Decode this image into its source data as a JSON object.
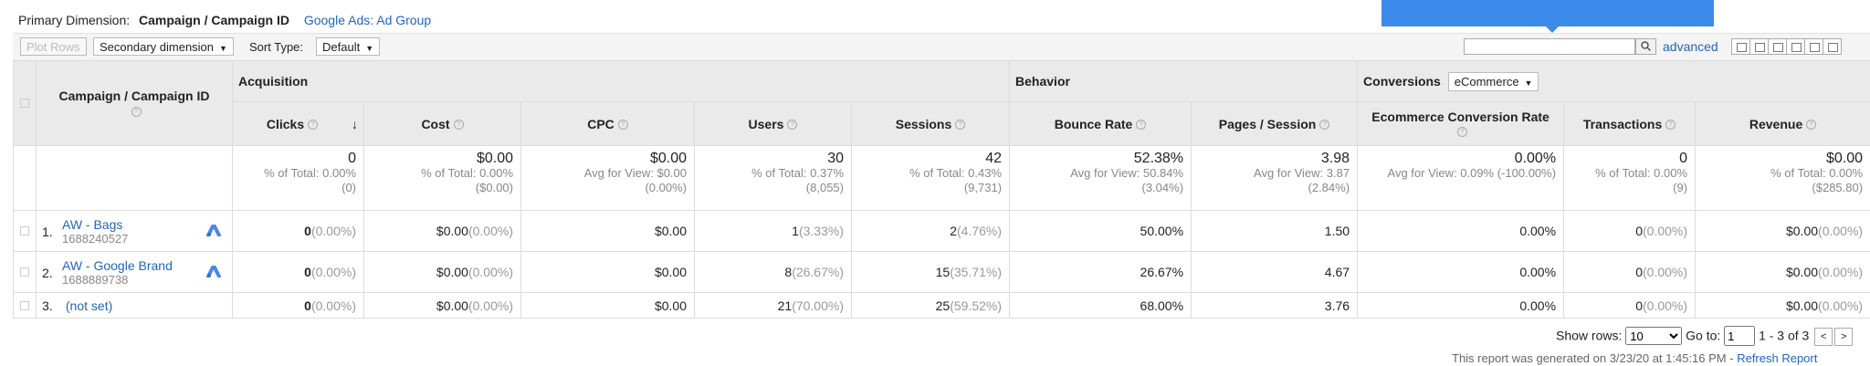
{
  "header": {
    "primary_label": "Primary Dimension:",
    "primary_value": "Campaign / Campaign ID",
    "alt_dimension": "Google Ads: Ad Group"
  },
  "toolbar": {
    "plot_rows": "Plot Rows",
    "secondary_dimension": "Secondary dimension",
    "sort_type_label": "Sort Type:",
    "sort_type_value": "Default",
    "search_placeholder": "",
    "advanced": "advanced"
  },
  "table": {
    "campaign_header": "Campaign / Campaign ID",
    "groups": {
      "acquisition": "Acquisition",
      "behavior": "Behavior",
      "conversions": "Conversions",
      "conversions_select": "eCommerce"
    },
    "columns": [
      "Clicks",
      "Cost",
      "CPC",
      "Users",
      "Sessions",
      "Bounce Rate",
      "Pages / Session",
      "Ecommerce Conversion Rate",
      "Transactions",
      "Revenue"
    ],
    "totals": [
      {
        "value": "0",
        "line2": "% of Total: 0.00%",
        "line3": "(0)"
      },
      {
        "value": "$0.00",
        "line2": "% of Total: 0.00%",
        "line3": "($0.00)"
      },
      {
        "value": "$0.00",
        "line2": "Avg for View: $0.00",
        "line3": "(0.00%)"
      },
      {
        "value": "30",
        "line2": "% of Total: 0.37%",
        "line3": "(8,055)"
      },
      {
        "value": "42",
        "line2": "% of Total: 0.43%",
        "line3": "(9,731)"
      },
      {
        "value": "52.38%",
        "line2": "Avg for View: 50.84%",
        "line3": "(3.04%)"
      },
      {
        "value": "3.98",
        "line2": "Avg for View: 3.87",
        "line3": "(2.84%)"
      },
      {
        "value": "0.00%",
        "line2": "Avg for View: 0.09% (-100.00%)",
        "line3": ""
      },
      {
        "value": "0",
        "line2": "% of Total: 0.00%",
        "line3": "(9)"
      },
      {
        "value": "$0.00",
        "line2": "% of Total: 0.00%",
        "line3": "($285.80)"
      }
    ],
    "rows": [
      {
        "index": "1.",
        "name": "AW - Bags",
        "id": "1688240527",
        "clicks": "0",
        "clicks_pct": "(0.00%)",
        "cost": "$0.00",
        "cost_pct": "(0.00%)",
        "cpc": "$0.00",
        "users": "1",
        "users_pct": "(3.33%)",
        "sessions": "2",
        "sessions_pct": "(4.76%)",
        "bounce": "50.00%",
        "pages": "1.50",
        "ecr": "0.00%",
        "trans": "0",
        "trans_pct": "(0.00%)",
        "revenue": "$0.00",
        "revenue_pct": "(0.00%)"
      },
      {
        "index": "2.",
        "name": "AW - Google Brand",
        "id": "1688889738",
        "clicks": "0",
        "clicks_pct": "(0.00%)",
        "cost": "$0.00",
        "cost_pct": "(0.00%)",
        "cpc": "$0.00",
        "users": "8",
        "users_pct": "(26.67%)",
        "sessions": "15",
        "sessions_pct": "(35.71%)",
        "bounce": "26.67%",
        "pages": "4.67",
        "ecr": "0.00%",
        "trans": "0",
        "trans_pct": "(0.00%)",
        "revenue": "$0.00",
        "revenue_pct": "(0.00%)"
      },
      {
        "index": "3.",
        "name": "(not set)",
        "id": "",
        "clicks": "0",
        "clicks_pct": "(0.00%)",
        "cost": "$0.00",
        "cost_pct": "(0.00%)",
        "cpc": "$0.00",
        "users": "21",
        "users_pct": "(70.00%)",
        "sessions": "25",
        "sessions_pct": "(59.52%)",
        "bounce": "68.00%",
        "pages": "3.76",
        "ecr": "0.00%",
        "trans": "0",
        "trans_pct": "(0.00%)",
        "revenue": "$0.00",
        "revenue_pct": "(0.00%)"
      }
    ]
  },
  "footer": {
    "show_rows_label": "Show rows:",
    "show_rows_value": "10",
    "goto_label": "Go to:",
    "goto_value": "1",
    "range": "1 - 3 of 3",
    "generated": "This report was generated on 3/23/20 at 1:45:16 PM -",
    "refresh": "Refresh Report"
  },
  "colors": {
    "link": "#2266bb",
    "banner": "#3c8bea",
    "header_bg": "#eaeaea"
  }
}
